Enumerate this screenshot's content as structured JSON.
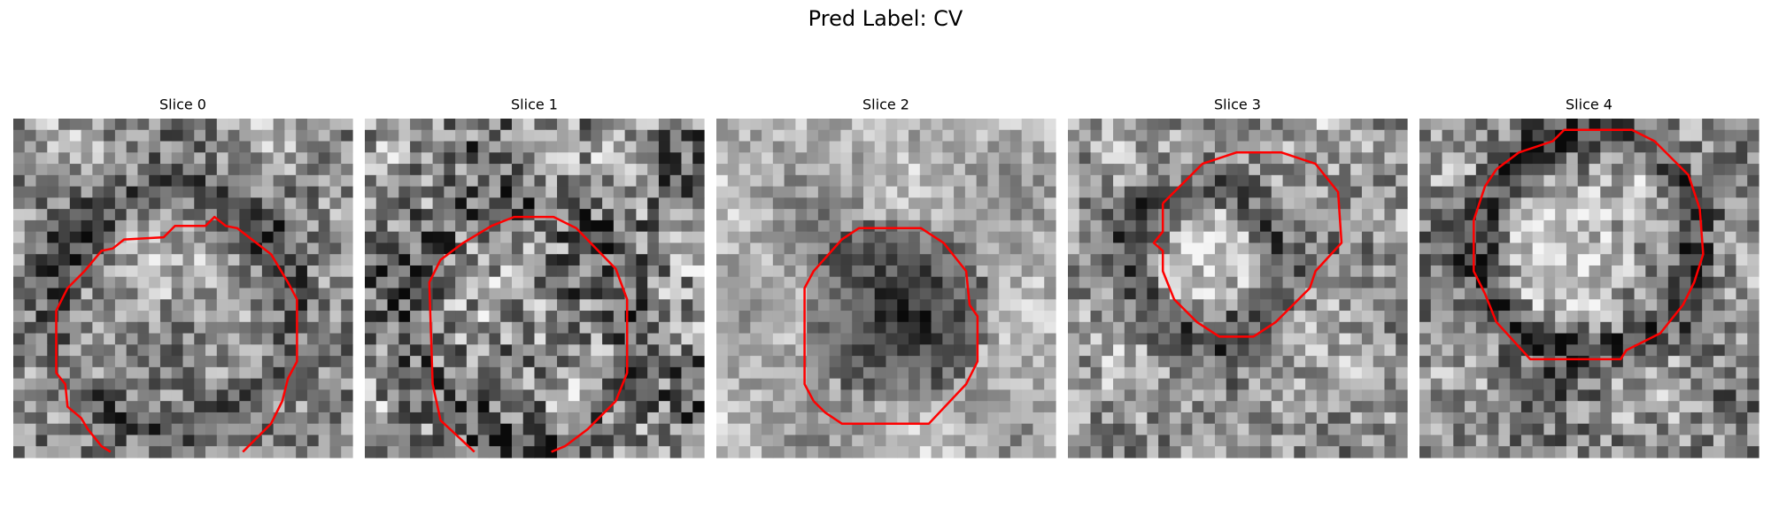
{
  "header": {
    "title": "Pred Label: CV"
  },
  "panels": [
    {
      "title": "Slice 0"
    },
    {
      "title": "Slice 1"
    },
    {
      "title": "Slice 2"
    },
    {
      "title": "Slice 3"
    },
    {
      "title": "Slice 4"
    }
  ]
}
